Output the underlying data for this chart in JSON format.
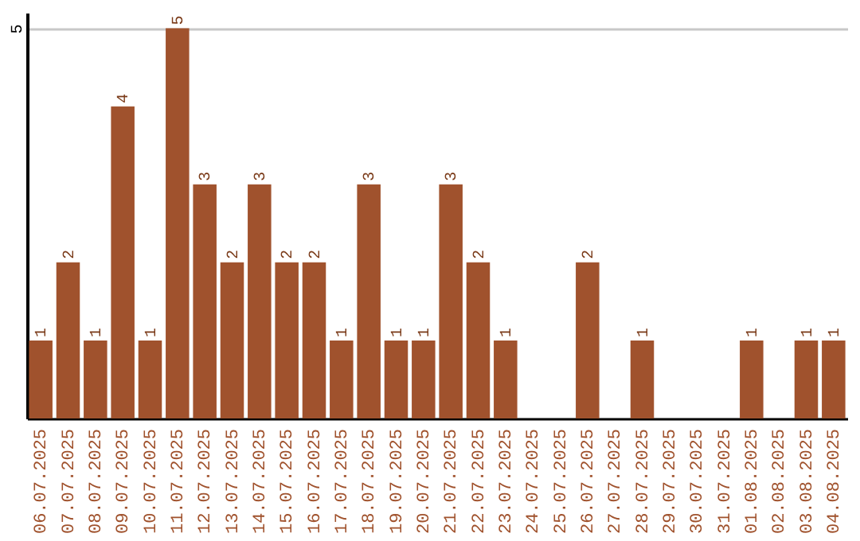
{
  "chart_data": {
    "type": "bar",
    "categories": [
      "06.07.2025",
      "07.07.2025",
      "08.07.2025",
      "09.07.2025",
      "10.07.2025",
      "11.07.2025",
      "12.07.2025",
      "13.07.2025",
      "14.07.2025",
      "15.07.2025",
      "16.07.2025",
      "17.07.2025",
      "18.07.2025",
      "19.07.2025",
      "20.07.2025",
      "21.07.2025",
      "22.07.2025",
      "23.07.2025",
      "24.07.2025",
      "25.07.2025",
      "26.07.2025",
      "27.07.2025",
      "28.07.2025",
      "29.07.2025",
      "30.07.2025",
      "31.07.2025",
      "01.08.2025",
      "02.08.2025",
      "03.08.2025",
      "04.08.2025"
    ],
    "values": [
      1,
      2,
      1,
      4,
      1,
      5,
      3,
      2,
      3,
      2,
      2,
      1,
      3,
      1,
      1,
      3,
      2,
      1,
      null,
      null,
      2,
      null,
      1,
      null,
      null,
      null,
      1,
      null,
      1,
      1
    ],
    "color": "#a0522d",
    "ylim": [
      0,
      5.2
    ],
    "yticks": [
      5
    ],
    "grid": "y",
    "data_labels": true
  }
}
